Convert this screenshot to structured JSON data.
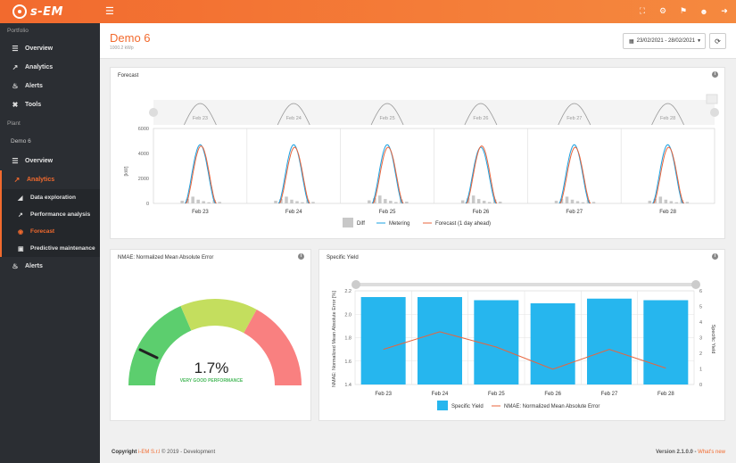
{
  "app": {
    "logo_text": "s-EM",
    "top_icons": [
      "fullscreen-icon",
      "settings-icon",
      "flag-icon",
      "user-icon",
      "logout-icon"
    ]
  },
  "sidebar": {
    "portfolio_label": "Portfolio",
    "portfolio_items": [
      {
        "label": "Overview",
        "icon": "overview-icon"
      },
      {
        "label": "Analytics",
        "icon": "analytics-icon"
      },
      {
        "label": "Alerts",
        "icon": "bell-icon"
      },
      {
        "label": "Tools",
        "icon": "tools-icon"
      }
    ],
    "plant_label": "Plant",
    "plant_name": "Demo 6",
    "plant_items": {
      "overview": "Overview",
      "analytics": "Analytics",
      "sub": [
        {
          "label": "Data exploration"
        },
        {
          "label": "Performance analysis"
        },
        {
          "label": "Forecast"
        },
        {
          "label": "Predictive maintenance"
        }
      ],
      "alerts": "Alerts"
    }
  },
  "header": {
    "title": "Demo 6",
    "subtitle": "1000.2 kWp",
    "date_range": "23/02/2021 - 28/02/2021"
  },
  "forecast_panel": {
    "title": "Forecast",
    "navigator_dates": [
      "Feb 23",
      "Feb 24",
      "Feb 25",
      "Feb 26",
      "Feb 27",
      "Feb 28"
    ],
    "legend": [
      "Diff",
      "Metering",
      "Forecast (1 day ahead)"
    ],
    "y_unit": "[kW]",
    "colors": {
      "metering": "#1aa0e0",
      "forecast": "#e8643c",
      "diff": "#c8c8c8"
    }
  },
  "nmae_panel": {
    "title": "NMAE: Normalized Mean Absolute Error",
    "value": "1.7%",
    "label": "VERY GOOD PERFORMANCE",
    "colors": [
      "#5cce6e",
      "#c4de5e",
      "#f98080"
    ],
    "gauge_value_percent": 1.7
  },
  "yield_panel": {
    "title": "Specific Yield",
    "legend": [
      "Specific Yield",
      "NMAE: Normalized Mean Absolute Error"
    ]
  },
  "chart_data": [
    {
      "type": "line",
      "title": "Forecast",
      "ylabel": "[kW]",
      "categories": [
        "Feb 23",
        "Feb 24",
        "Feb 25",
        "Feb 26",
        "Feb 27",
        "Feb 28"
      ],
      "ylim": [
        0,
        6000
      ],
      "yticks": [
        0,
        2000,
        4000,
        6000
      ],
      "series": [
        {
          "name": "Metering",
          "daily_peak": [
            4700,
            4700,
            4700,
            4500,
            4700,
            4700
          ]
        },
        {
          "name": "Forecast (1 day ahead)",
          "daily_peak": [
            4600,
            4500,
            4500,
            4600,
            4500,
            4500
          ]
        },
        {
          "name": "Diff",
          "daily_peak": [
            600,
            600,
            700,
            700,
            600,
            600
          ]
        }
      ]
    },
    {
      "type": "bar",
      "title": "Specific Yield",
      "categories": [
        "Feb 23",
        "Feb 24",
        "Feb 25",
        "Feb 26",
        "Feb 27",
        "Feb 28"
      ],
      "ylabel_left": "NMAE: Normalized Mean Absolute Error [%]",
      "ylabel_right": "Specific Yield",
      "ylim_left": [
        1.4,
        2.2
      ],
      "yticks_left": [
        1.4,
        1.6,
        1.8,
        2.0,
        2.2
      ],
      "ylim_right": [
        0,
        6
      ],
      "yticks_right": [
        0,
        1,
        2,
        3,
        4,
        5,
        6
      ],
      "series": [
        {
          "name": "Specific Yield",
          "axis": "right",
          "type": "bar",
          "values": [
            5.6,
            5.6,
            5.4,
            5.2,
            5.5,
            5.4
          ]
        },
        {
          "name": "NMAE: Normalized Mean Absolute Error",
          "axis": "left",
          "type": "line",
          "values": [
            1.7,
            1.85,
            1.72,
            1.53,
            1.7,
            1.54
          ]
        }
      ]
    }
  ],
  "footer": {
    "copyright_prefix": "Copyright",
    "company": "i-EM S.r.l",
    "copyright_rest": "© 2019 - Development",
    "version": "Version 2.1.0.0 -",
    "whats_new": "What's new"
  }
}
